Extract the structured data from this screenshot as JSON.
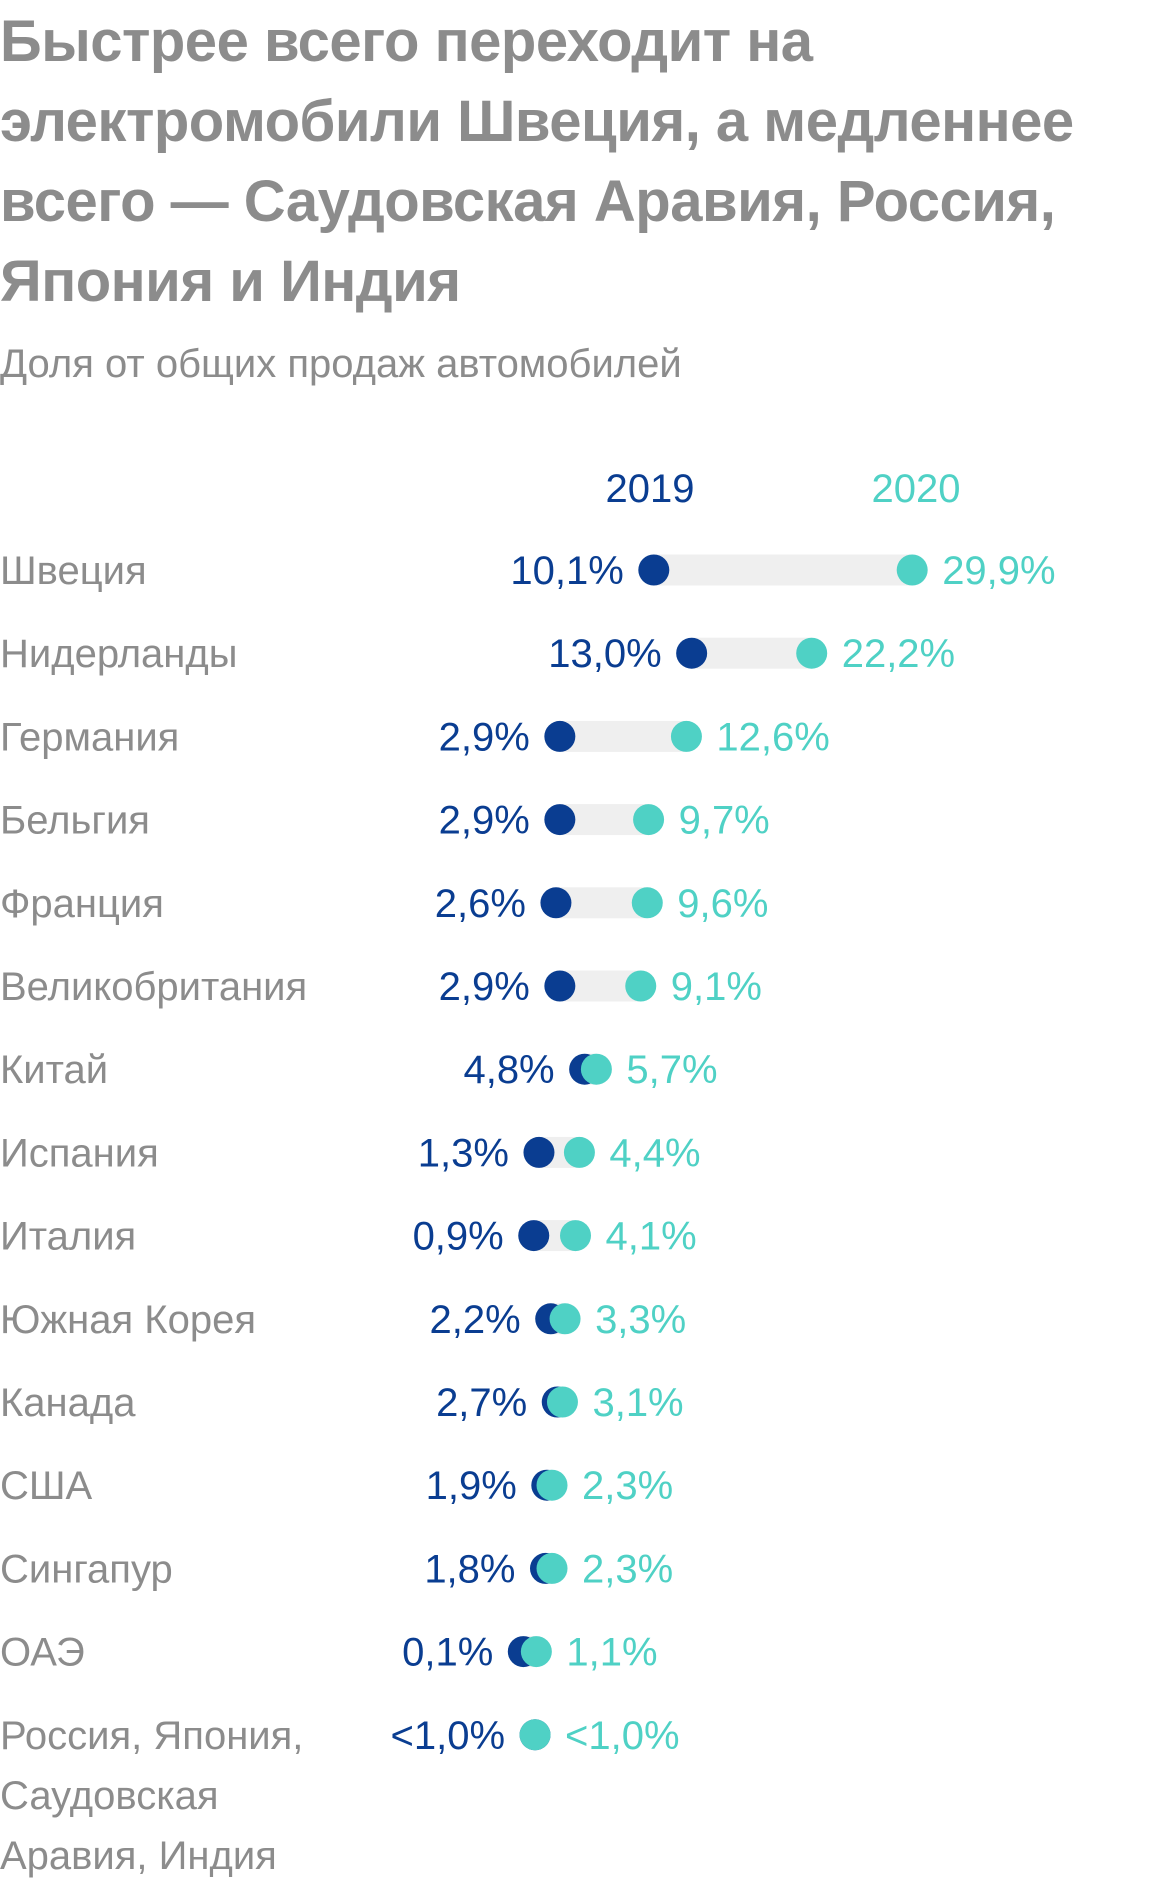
{
  "title": "Быстрее всего переходит на электромобили Швеция, а медленнее всего — Саудовская Аравия, Россия, Япония и Индия",
  "subtitle": "Доля от общих продаж автомобилей",
  "colors": {
    "series_2019": "#0a3d91",
    "series_2020": "#4fd1c5",
    "bar": "#efefef",
    "text": "#8c8c8c"
  },
  "chart_data": {
    "type": "dumbbell",
    "series": [
      {
        "name": "2019"
      },
      {
        "name": "2020"
      }
    ],
    "rows": [
      {
        "country": [
          "Швеция"
        ],
        "v2019": 10.1,
        "v2020": 29.9,
        "label2019": "10,1%",
        "label2020": "29,9%"
      },
      {
        "country": [
          "Нидерланды"
        ],
        "v2019": 13.0,
        "v2020": 22.2,
        "label2019": "13,0%",
        "label2020": "22,2%"
      },
      {
        "country": [
          "Германия"
        ],
        "v2019": 2.9,
        "v2020": 12.6,
        "label2019": "2,9%",
        "label2020": "12,6%"
      },
      {
        "country": [
          "Бельгия"
        ],
        "v2019": 2.9,
        "v2020": 9.7,
        "label2019": "2,9%",
        "label2020": "9,7%"
      },
      {
        "country": [
          "Франция"
        ],
        "v2019": 2.6,
        "v2020": 9.6,
        "label2019": "2,6%",
        "label2020": "9,6%"
      },
      {
        "country": [
          "Великобритания"
        ],
        "v2019": 2.9,
        "v2020": 9.1,
        "label2019": "2,9%",
        "label2020": "9,1%"
      },
      {
        "country": [
          "Китай"
        ],
        "v2019": 4.8,
        "v2020": 5.7,
        "label2019": "4,8%",
        "label2020": "5,7%"
      },
      {
        "country": [
          "Испания"
        ],
        "v2019": 1.3,
        "v2020": 4.4,
        "label2019": "1,3%",
        "label2020": "4,4%"
      },
      {
        "country": [
          "Италия"
        ],
        "v2019": 0.9,
        "v2020": 4.1,
        "label2019": "0,9%",
        "label2020": "4,1%"
      },
      {
        "country": [
          "Южная Корея"
        ],
        "v2019": 2.2,
        "v2020": 3.3,
        "label2019": "2,2%",
        "label2020": "3,3%"
      },
      {
        "country": [
          "Канада"
        ],
        "v2019": 2.7,
        "v2020": 3.1,
        "label2019": "2,7%",
        "label2020": "3,1%"
      },
      {
        "country": [
          "США"
        ],
        "v2019": 1.9,
        "v2020": 2.3,
        "label2019": "1,9%",
        "label2020": "2,3%"
      },
      {
        "country": [
          "Сингапур"
        ],
        "v2019": 1.8,
        "v2020": 2.3,
        "label2019": "1,8%",
        "label2020": "2,3%"
      },
      {
        "country": [
          "ОАЭ"
        ],
        "v2019": 0.1,
        "v2020": 1.1,
        "label2019": "0,1%",
        "label2020": "1,1%"
      },
      {
        "country": [
          "Россия, Япония,",
          "Саудовская",
          "Аравия, Индия"
        ],
        "v2019": 1.0,
        "v2020": 1.0,
        "label2019": "<1,0%",
        "label2020": "<1,0%"
      }
    ]
  }
}
